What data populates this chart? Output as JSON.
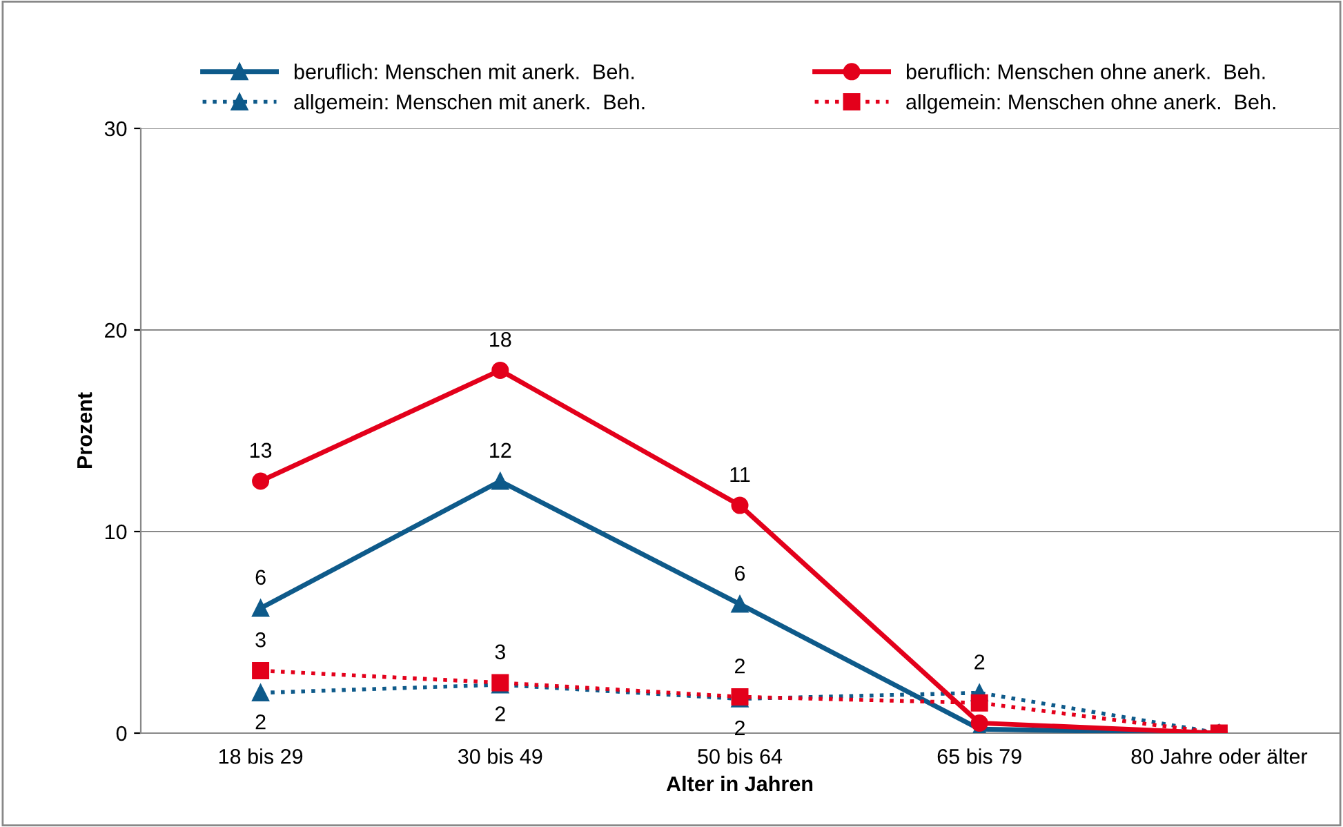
{
  "chart_data": {
    "type": "line",
    "xlabel": "Alter in Jahren",
    "ylabel": "Prozent",
    "categories": [
      "18 bis 29",
      "30 bis 49",
      "50 bis 64",
      "65 bis 79",
      "80 Jahre oder älter"
    ],
    "series": [
      {
        "name": "beruflich: Menschen mit anerk.  Beh.",
        "color": "#0e5a8a",
        "values": [
          6.2,
          12.5,
          6.4,
          0.2,
          0
        ],
        "marker": "triangle",
        "line_style": "solid",
        "value_labels": [
          "6",
          "12",
          "6",
          null,
          null
        ]
      },
      {
        "name": "allgemein: Menschen mit anerk.  Beh.",
        "color": "#0e5a8a",
        "values": [
          2.0,
          2.4,
          1.7,
          2.0,
          0
        ],
        "marker": "triangle",
        "line_style": "dotted",
        "value_labels": [
          "2",
          "2",
          "2",
          "2",
          null
        ]
      },
      {
        "name": "beruflich: Menschen ohne anerk.  Beh.",
        "color": "#e3001b",
        "values": [
          12.5,
          18.0,
          11.3,
          0.5,
          0
        ],
        "marker": "circle",
        "line_style": "solid",
        "value_labels": [
          "13",
          "18",
          "11",
          null,
          null
        ]
      },
      {
        "name": "allgemein: Menschen ohne anerk.  Beh.",
        "color": "#e3001b",
        "values": [
          3.1,
          2.5,
          1.8,
          1.5,
          0
        ],
        "marker": "square",
        "line_style": "dotted",
        "value_labels": [
          "3",
          "3",
          "2",
          null,
          null
        ]
      }
    ],
    "ylim": [
      0,
      30
    ],
    "yticks": [
      0,
      10,
      20,
      30
    ],
    "grid": "y",
    "legend": "top"
  }
}
